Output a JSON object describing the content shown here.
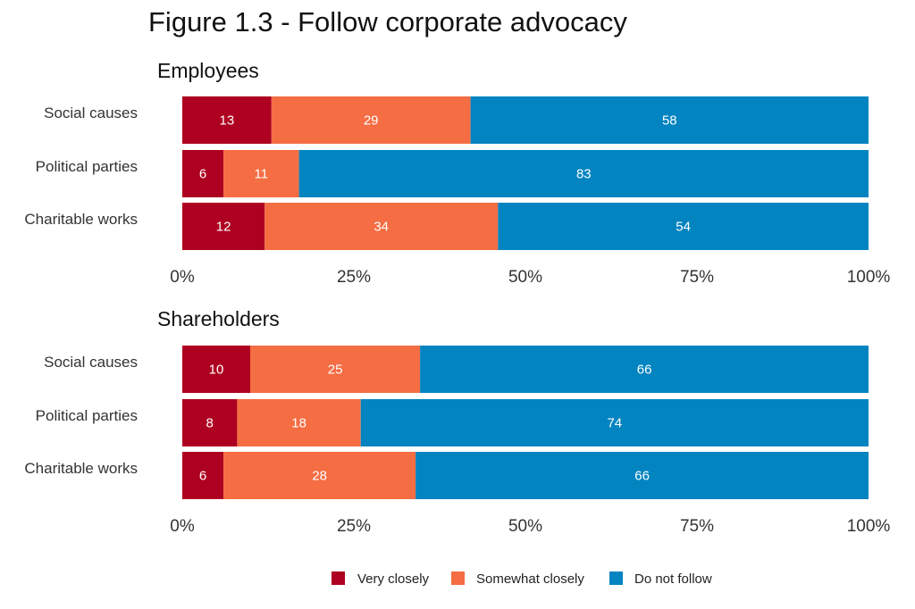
{
  "chart_data": {
    "type": "bar",
    "orientation": "horizontal",
    "stacked": true,
    "title": "Figure 1.3 - Follow corporate advocacy",
    "legend_position": "bottom",
    "grid": false,
    "xlim": [
      0,
      100
    ],
    "xticks": [
      "0%",
      "25%",
      "50%",
      "75%",
      "100%"
    ],
    "series_meta": [
      {
        "name": "Very closely",
        "color": "#ae0020"
      },
      {
        "name": "Somewhat closely",
        "color": "#f46d43"
      },
      {
        "name": "Do not follow",
        "color": "#0284c0"
      }
    ],
    "panels": [
      {
        "title": "Employees",
        "categories": [
          "Social causes",
          "Political parties",
          "Charitable works"
        ],
        "series": [
          {
            "name": "Very closely",
            "values": [
              13,
              6,
              12
            ]
          },
          {
            "name": "Somewhat closely",
            "values": [
              29,
              11,
              34
            ]
          },
          {
            "name": "Do not follow",
            "values": [
              58,
              83,
              54
            ]
          }
        ]
      },
      {
        "title": "Shareholders",
        "categories": [
          "Social causes",
          "Political parties",
          "Charitable works"
        ],
        "series": [
          {
            "name": "Very closely",
            "values": [
              10,
              8,
              6
            ]
          },
          {
            "name": "Somewhat closely",
            "values": [
              25,
              18,
              28
            ]
          },
          {
            "name": "Do not follow",
            "values": [
              66,
              74,
              66
            ]
          }
        ]
      }
    ]
  }
}
